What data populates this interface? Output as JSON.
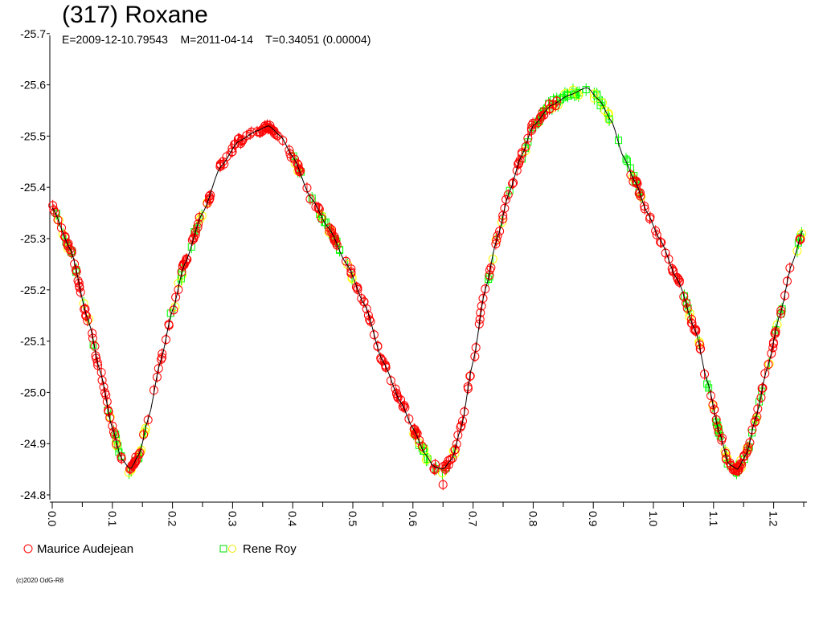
{
  "chart_data": {
    "type": "scatter",
    "title": "(317) Roxane",
    "subtitle": "E=2009-12-10.79543    M=2011-04-14    T=0.34051 (0.00004)",
    "xlabel": "",
    "ylabel": "",
    "xlim": [
      0.0,
      1.25
    ],
    "ylim": [
      -24.8,
      -25.7
    ],
    "y_inverted": true,
    "x_ticks": [
      "0.0",
      "0.1",
      "0.2",
      "0.3",
      "0.4",
      "0.5",
      "0.6",
      "0.7",
      "0.8",
      "0.9",
      "1.0",
      "1.1",
      "1.2"
    ],
    "y_ticks": [
      "-25.7",
      "-25.6",
      "-25.5",
      "-25.4",
      "-25.3",
      "-25.2",
      "-25.1",
      "-25.0",
      "-24.9",
      "-24.8"
    ],
    "grid": false,
    "legend_position": "bottom-left",
    "fit_curve": {
      "color": "#000000",
      "points": [
        [
          0.0,
          -25.36
        ],
        [
          0.03,
          -25.28
        ],
        [
          0.06,
          -25.14
        ],
        [
          0.08,
          -25.04
        ],
        [
          0.1,
          -24.93
        ],
        [
          0.115,
          -24.87
        ],
        [
          0.13,
          -24.85
        ],
        [
          0.145,
          -24.88
        ],
        [
          0.16,
          -24.95
        ],
        [
          0.18,
          -25.06
        ],
        [
          0.2,
          -25.16
        ],
        [
          0.22,
          -25.25
        ],
        [
          0.25,
          -25.35
        ],
        [
          0.28,
          -25.44
        ],
        [
          0.31,
          -25.49
        ],
        [
          0.34,
          -25.51
        ],
        [
          0.36,
          -25.52
        ],
        [
          0.38,
          -25.5
        ],
        [
          0.4,
          -25.46
        ],
        [
          0.43,
          -25.38
        ],
        [
          0.46,
          -25.32
        ],
        [
          0.49,
          -25.25
        ],
        [
          0.52,
          -25.17
        ],
        [
          0.55,
          -25.06
        ],
        [
          0.58,
          -24.98
        ],
        [
          0.6,
          -24.93
        ],
        [
          0.62,
          -24.88
        ],
        [
          0.635,
          -24.855
        ],
        [
          0.65,
          -24.85
        ],
        [
          0.665,
          -24.87
        ],
        [
          0.68,
          -24.93
        ],
        [
          0.7,
          -25.06
        ],
        [
          0.72,
          -25.2
        ],
        [
          0.74,
          -25.3
        ],
        [
          0.76,
          -25.39
        ],
        [
          0.78,
          -25.46
        ],
        [
          0.8,
          -25.52
        ],
        [
          0.83,
          -25.56
        ],
        [
          0.86,
          -25.58
        ],
        [
          0.89,
          -25.595
        ],
        [
          0.91,
          -25.57
        ],
        [
          0.93,
          -25.53
        ],
        [
          0.95,
          -25.46
        ],
        [
          0.97,
          -25.41
        ],
        [
          0.99,
          -25.35
        ],
        [
          1.01,
          -25.3
        ],
        [
          1.04,
          -25.22
        ],
        [
          1.07,
          -25.12
        ],
        [
          1.09,
          -25.02
        ],
        [
          1.11,
          -24.92
        ],
        [
          1.125,
          -24.86
        ],
        [
          1.14,
          -24.85
        ],
        [
          1.155,
          -24.88
        ],
        [
          1.17,
          -24.95
        ],
        [
          1.19,
          -25.05
        ],
        [
          1.21,
          -25.15
        ],
        [
          1.23,
          -25.25
        ],
        [
          1.25,
          -25.32
        ]
      ]
    },
    "series": [
      {
        "name": "Maurice Audejean",
        "marker": "circle",
        "color": "#ff0000",
        "x_ranges": [
          [
            0.0,
            0.14
          ],
          [
            0.14,
            0.62
          ],
          [
            0.63,
            0.67
          ],
          [
            0.67,
            0.84
          ],
          [
            0.96,
            1.25
          ]
        ],
        "approx_points": 420,
        "outliers": [
          [
            0.65,
            -24.82
          ]
        ]
      },
      {
        "name": "Rene Roy",
        "marker": "square",
        "color": "#00ff00",
        "secondary_marker": "circle",
        "secondary_color": "#ffff00",
        "x_ranges": [
          [
            0.0,
            0.16
          ],
          [
            0.18,
            0.26
          ],
          [
            0.4,
            0.5
          ],
          [
            0.6,
            0.67
          ],
          [
            0.72,
            0.84
          ],
          [
            0.84,
            0.98
          ],
          [
            1.05,
            1.25
          ]
        ],
        "approx_points": 300
      }
    ]
  },
  "copyright": "(c)2020 OdG-R8"
}
